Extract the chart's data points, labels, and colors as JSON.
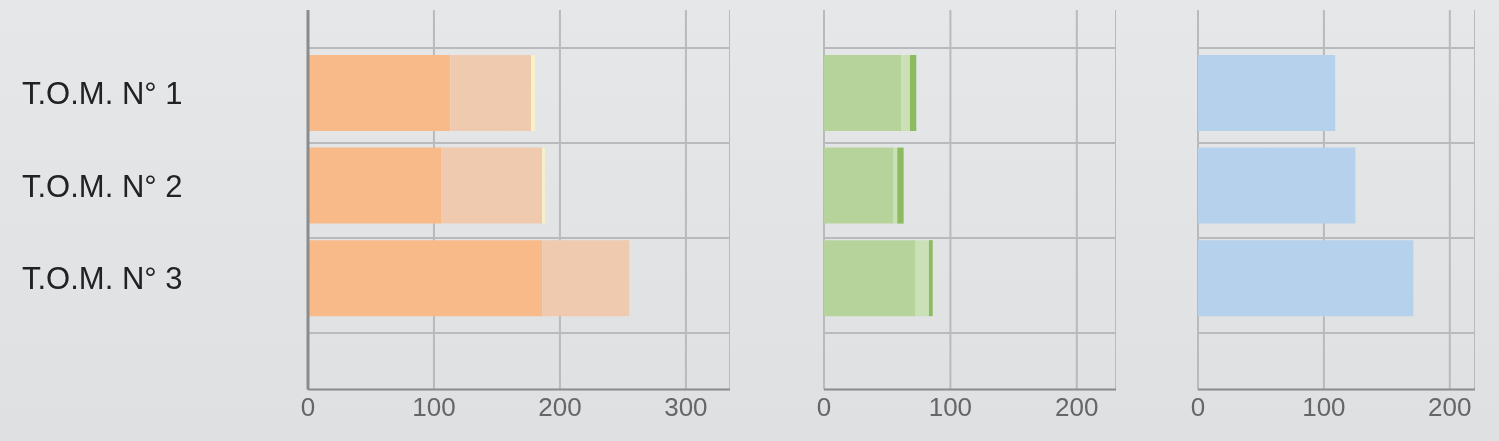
{
  "chart_data": [
    {
      "type": "bar",
      "orientation": "horizontal",
      "stacked": true,
      "categories": [
        "T.O.M. N° 1",
        "T.O.M. N° 2",
        "T.O.M. N° 3"
      ],
      "series": [
        {
          "color": "#f9ba8a",
          "values": [
            113,
            106,
            186
          ]
        },
        {
          "color": "#efcaae",
          "values": [
            64,
            80,
            69
          ]
        },
        {
          "color": "#f8f4c2",
          "values": [
            3,
            2,
            0
          ]
        }
      ],
      "xlim": [
        0,
        335
      ],
      "xticks": [
        0,
        100,
        200,
        300
      ],
      "grid": true
    },
    {
      "type": "bar",
      "orientation": "horizontal",
      "stacked": true,
      "categories": [
        null,
        null,
        null
      ],
      "series": [
        {
          "color": "#b7d39c",
          "values": [
            61,
            55,
            72
          ]
        },
        {
          "color": "#cbe0b7",
          "values": [
            7,
            3,
            11
          ]
        },
        {
          "color": "#8dbb5f",
          "values": [
            5,
            5,
            3
          ]
        }
      ],
      "xlim": [
        0,
        231
      ],
      "xticks": [
        0,
        100,
        200
      ],
      "grid": true,
      "tick_labels": "x"
    },
    {
      "type": "bar",
      "orientation": "horizontal",
      "stacked": true,
      "categories": [
        null,
        null,
        null
      ],
      "series": [
        {
          "color": "#b6d1ec",
          "values": [
            109,
            125,
            171
          ]
        }
      ],
      "xlim": [
        0,
        220
      ],
      "xticks": [
        0,
        100,
        200
      ],
      "grid": true,
      "tick_labels": "x"
    }
  ]
}
